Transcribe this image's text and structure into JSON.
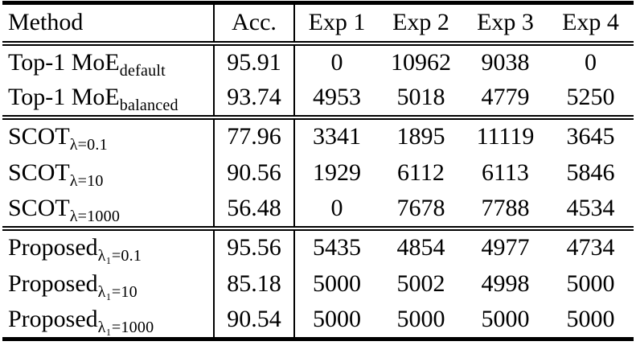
{
  "colors": {
    "background": "#ffffff",
    "text": "#000000",
    "rules": "#000000"
  },
  "table": {
    "columns": [
      "Method",
      "Acc.",
      "Exp 1",
      "Exp 2",
      "Exp 3",
      "Exp 4"
    ],
    "groups": [
      {
        "rows": [
          {
            "method": "Top-1 MoE",
            "method_sub": "default",
            "acc": "95.91",
            "exps": [
              "0",
              "10962",
              "9038",
              "0"
            ]
          },
          {
            "method": "Top-1 MoE",
            "method_sub": "balanced",
            "acc": "93.74",
            "exps": [
              "4953",
              "5018",
              "4779",
              "5250"
            ]
          }
        ]
      },
      {
        "rows": [
          {
            "method": "SCOT",
            "method_sub": "λ=0.1",
            "acc": "77.96",
            "exps": [
              "3341",
              "1895",
              "11119",
              "3645"
            ]
          },
          {
            "method": "SCOT",
            "method_sub": "λ=10",
            "acc": "90.56",
            "exps": [
              "1929",
              "6112",
              "6113",
              "5846"
            ]
          },
          {
            "method": "SCOT",
            "method_sub": "λ=1000",
            "acc": "56.48",
            "exps": [
              "0",
              "7678",
              "7788",
              "4534"
            ]
          }
        ]
      },
      {
        "rows": [
          {
            "method": "Proposed",
            "method_sub": "λ₁=0.1",
            "acc": "95.56",
            "exps": [
              "5435",
              "4854",
              "4977",
              "4734"
            ]
          },
          {
            "method": "Proposed",
            "method_sub": "λ₁=10",
            "acc": "85.18",
            "exps": [
              "5000",
              "5002",
              "4998",
              "5000"
            ]
          },
          {
            "method": "Proposed",
            "method_sub": "λ₁=1000",
            "acc": "90.54",
            "exps": [
              "5000",
              "5000",
              "5000",
              "5000"
            ]
          }
        ]
      }
    ]
  }
}
